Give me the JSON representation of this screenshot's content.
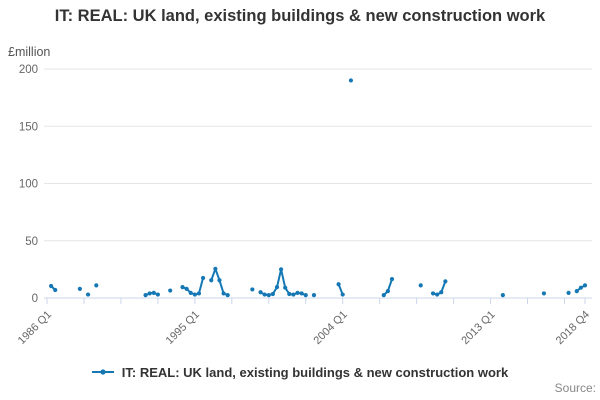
{
  "chart_data": {
    "type": "line",
    "title": "IT: REAL: UK land, existing buildings & new construction work",
    "unit_label": "£million",
    "legend_label": "IT: REAL: UK land, existing buildings & new construction work",
    "source_label": "Source:",
    "series_color": "#1578b5",
    "grid_color": "#e6e6e6",
    "axis_color": "#ccd6eb",
    "label_color": "#666666",
    "ylim": [
      0,
      200
    ],
    "yticks": [
      0,
      50,
      100,
      150,
      200
    ],
    "x_start": "1986 Q1",
    "x_end": "2018 Q4",
    "x_labeled_ticks": [
      "1986 Q1",
      "1995 Q1",
      "2004 Q1",
      "2013 Q1",
      "2018 Q4"
    ],
    "x_minor_tick_step_quarters": 9,
    "legend_position": "bottom",
    "grid": "horizontal-only",
    "series": [
      {
        "name": "IT: REAL: UK land, existing buildings & new construction work",
        "points": [
          [
            "1986 Q2",
            10.5
          ],
          [
            "1986 Q3",
            7
          ],
          [
            "1988 Q1",
            8
          ],
          [
            "1988 Q3",
            3
          ],
          [
            "1989 Q1",
            11
          ],
          [
            "1992 Q1",
            2.5
          ],
          [
            "1992 Q2",
            4
          ],
          [
            "1992 Q3",
            4.5
          ],
          [
            "1992 Q4",
            3
          ],
          [
            "1993 Q3",
            6.5
          ],
          [
            "1994 Q2",
            9.5
          ],
          [
            "1994 Q3",
            8
          ],
          [
            "1994 Q4",
            4.5
          ],
          [
            "1995 Q1",
            3
          ],
          [
            "1995 Q2",
            4
          ],
          [
            "1995 Q3",
            17.5
          ],
          [
            "1996 Q1",
            15.5
          ],
          [
            "1996 Q2",
            25.5
          ],
          [
            "1996 Q3",
            15.5
          ],
          [
            "1996 Q4",
            4
          ],
          [
            "1997 Q1",
            2.5
          ],
          [
            "1998 Q3",
            7.5
          ],
          [
            "1999 Q1",
            5
          ],
          [
            "1999 Q2",
            3
          ],
          [
            "1999 Q3",
            2.5
          ],
          [
            "1999 Q4",
            3.5
          ],
          [
            "2000 Q1",
            9.5
          ],
          [
            "2000 Q2",
            25
          ],
          [
            "2000 Q3",
            9
          ],
          [
            "2000 Q4",
            3.5
          ],
          [
            "2001 Q1",
            3
          ],
          [
            "2001 Q2",
            4.5
          ],
          [
            "2001 Q3",
            4
          ],
          [
            "2001 Q4",
            2.5
          ],
          [
            "2002 Q2",
            2.5
          ],
          [
            "2003 Q4",
            12
          ],
          [
            "2004 Q1",
            3
          ],
          [
            "2004 Q3",
            190
          ],
          [
            "2006 Q3",
            2.5
          ],
          [
            "2006 Q4",
            6
          ],
          [
            "2007 Q1",
            16.5
          ],
          [
            "2008 Q4",
            11
          ],
          [
            "2009 Q3",
            4
          ],
          [
            "2009 Q4",
            3
          ],
          [
            "2010 Q1",
            5
          ],
          [
            "2010 Q2",
            14.5
          ],
          [
            "2013 Q4",
            2.5
          ],
          [
            "2016 Q2",
            4
          ],
          [
            "2017 Q4",
            4.5
          ],
          [
            "2018 Q2",
            6
          ],
          [
            "2018 Q3",
            9
          ],
          [
            "2018 Q4",
            11
          ]
        ]
      }
    ]
  }
}
